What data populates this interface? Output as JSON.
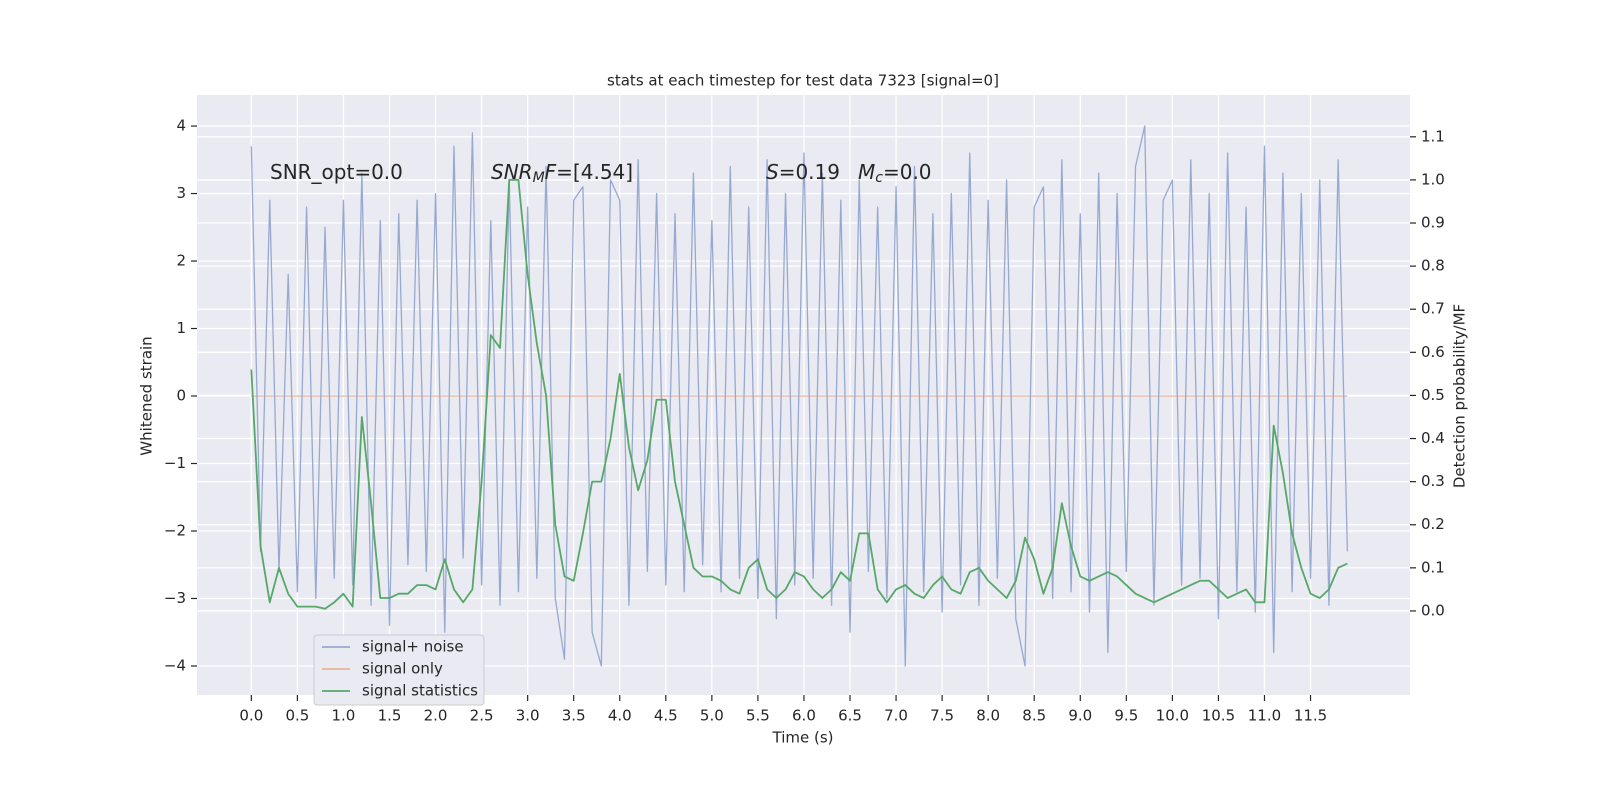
{
  "chart_data": {
    "type": "line",
    "title": "stats at each timestep for test data 7323 [signal=0]",
    "xlabel": "Time (s)",
    "ylabel": "Whitened strain",
    "y2label": "Detection probability/MF",
    "annotations": [
      {
        "parts": [
          {
            "text": "SNR_opt=0.0"
          }
        ]
      },
      {
        "parts": [
          {
            "text": "SNR",
            "italic": true
          },
          {
            "text": "M",
            "italic": true,
            "sub": true
          },
          {
            "text": "F",
            "italic": true
          },
          {
            "text": "=[4.54]"
          }
        ]
      },
      {
        "parts": [
          {
            "text": "S",
            "italic": true
          },
          {
            "text": "=0.19"
          }
        ]
      },
      {
        "parts": [
          {
            "text": "M",
            "italic": true
          },
          {
            "text": "c",
            "italic": true,
            "sub": true
          },
          {
            "text": "=0.0"
          }
        ]
      }
    ],
    "x": [
      0,
      0.1,
      0.2,
      0.3,
      0.4,
      0.5,
      0.6,
      0.7,
      0.8,
      0.9,
      1.0,
      1.1,
      1.2,
      1.3,
      1.4,
      1.5,
      1.6,
      1.7,
      1.8,
      1.9,
      2.0,
      2.1,
      2.2,
      2.3,
      2.4,
      2.5,
      2.6,
      2.7,
      2.8,
      2.9,
      3.0,
      3.1,
      3.2,
      3.3,
      3.4,
      3.5,
      3.6,
      3.7,
      3.8,
      3.9,
      4.0,
      4.1,
      4.2,
      4.3,
      4.4,
      4.5,
      4.6,
      4.7,
      4.8,
      4.9,
      5.0,
      5.1,
      5.2,
      5.3,
      5.4,
      5.5,
      5.6,
      5.7,
      5.8,
      5.9,
      6.0,
      6.1,
      6.2,
      6.3,
      6.4,
      6.5,
      6.6,
      6.7,
      6.8,
      6.9,
      7.0,
      7.1,
      7.2,
      7.3,
      7.4,
      7.5,
      7.6,
      7.7,
      7.8,
      7.9,
      8.0,
      8.1,
      8.2,
      8.3,
      8.4,
      8.5,
      8.6,
      8.7,
      8.8,
      8.9,
      9.0,
      9.1,
      9.2,
      9.3,
      9.4,
      9.5,
      9.6,
      9.7,
      9.8,
      9.9,
      10.0,
      10.1,
      10.2,
      10.3,
      10.4,
      10.5,
      10.6,
      10.7,
      10.8,
      10.9,
      11.0,
      11.1,
      11.2,
      11.3,
      11.4,
      11.5,
      11.6,
      11.7,
      11.8,
      11.9
    ],
    "series": [
      {
        "name": "signal+ noise",
        "color": "#97a9d1",
        "values": [
          3.7,
          -2.3,
          2.9,
          -2.6,
          1.8,
          -2.9,
          2.8,
          -3.0,
          2.5,
          -2.7,
          2.9,
          -2.8,
          3.3,
          -3.1,
          2.6,
          -3.4,
          2.7,
          -2.5,
          2.9,
          -2.6,
          3.0,
          -3.5,
          3.7,
          -2.4,
          3.9,
          -2.8,
          2.6,
          -3.1,
          3.2,
          -2.9,
          2.8,
          -2.7,
          3.4,
          -3.0,
          -3.9,
          2.9,
          3.1,
          -3.5,
          -4.0,
          3.2,
          2.9,
          -3.1,
          3.5,
          -2.6,
          3.0,
          -2.8,
          2.7,
          -2.9,
          3.3,
          -2.5,
          2.6,
          -2.9,
          3.4,
          -2.7,
          2.8,
          -3.0,
          3.5,
          -3.3,
          3.0,
          -2.8,
          3.6,
          -2.7,
          3.3,
          -3.1,
          2.9,
          -3.5,
          3.2,
          -2.6,
          2.8,
          -3.0,
          3.1,
          -4.0,
          3.4,
          -2.9,
          2.7,
          -3.2,
          3.0,
          -2.8,
          3.6,
          -3.1,
          2.9,
          -2.7,
          3.2,
          -3.3,
          -4.0,
          2.8,
          3.1,
          -3.0,
          3.5,
          -2.9,
          2.7,
          -3.2,
          3.3,
          -3.8,
          3.0,
          -2.6,
          3.4,
          4.0,
          -3.1,
          2.9,
          3.2,
          -2.8,
          3.5,
          -2.7,
          3.0,
          -3.3,
          3.6,
          -2.9,
          2.8,
          -3.2,
          3.7,
          -3.8,
          3.3,
          -2.9,
          3.0,
          -2.7,
          3.2,
          -3.1,
          3.5,
          -2.3
        ]
      },
      {
        "name": "signal only",
        "color": "#e8b49a",
        "values": [
          0,
          0,
          0,
          0,
          0,
          0,
          0,
          0,
          0,
          0,
          0,
          0,
          0,
          0,
          0,
          0,
          0,
          0,
          0,
          0,
          0,
          0,
          0,
          0,
          0,
          0,
          0,
          0,
          0,
          0,
          0,
          0,
          0,
          0,
          0,
          0,
          0,
          0,
          0,
          0,
          0,
          0,
          0,
          0,
          0,
          0,
          0,
          0,
          0,
          0,
          0,
          0,
          0,
          0,
          0,
          0,
          0,
          0,
          0,
          0,
          0,
          0,
          0,
          0,
          0,
          0,
          0,
          0,
          0,
          0,
          0,
          0,
          0,
          0,
          0,
          0,
          0,
          0,
          0,
          0,
          0,
          0,
          0,
          0,
          0,
          0,
          0,
          0,
          0,
          0,
          0,
          0,
          0,
          0,
          0,
          0,
          0,
          0,
          0,
          0,
          0,
          0,
          0,
          0,
          0,
          0,
          0,
          0,
          0,
          0,
          0,
          0,
          0,
          0,
          0,
          0,
          0,
          0,
          0,
          0
        ]
      },
      {
        "name": "signal statistics",
        "color": "#55a868",
        "axis": "y2",
        "values": [
          0.56,
          0.15,
          0.02,
          0.1,
          0.04,
          0.01,
          0.01,
          0.01,
          0.005,
          0.02,
          0.04,
          0.01,
          0.45,
          0.25,
          0.03,
          0.03,
          0.04,
          0.04,
          0.06,
          0.06,
          0.05,
          0.12,
          0.05,
          0.02,
          0.05,
          0.3,
          0.64,
          0.61,
          1.0,
          1.0,
          0.78,
          0.62,
          0.5,
          0.2,
          0.08,
          0.07,
          0.18,
          0.3,
          0.3,
          0.4,
          0.55,
          0.38,
          0.28,
          0.35,
          0.49,
          0.49,
          0.3,
          0.2,
          0.1,
          0.08,
          0.08,
          0.07,
          0.05,
          0.04,
          0.1,
          0.12,
          0.05,
          0.03,
          0.05,
          0.09,
          0.08,
          0.05,
          0.03,
          0.05,
          0.09,
          0.07,
          0.18,
          0.18,
          0.05,
          0.02,
          0.05,
          0.06,
          0.04,
          0.03,
          0.06,
          0.08,
          0.05,
          0.04,
          0.09,
          0.1,
          0.07,
          0.05,
          0.03,
          0.07,
          0.17,
          0.12,
          0.04,
          0.1,
          0.25,
          0.15,
          0.08,
          0.07,
          0.08,
          0.09,
          0.08,
          0.06,
          0.04,
          0.03,
          0.02,
          0.03,
          0.04,
          0.05,
          0.06,
          0.07,
          0.07,
          0.05,
          0.03,
          0.04,
          0.05,
          0.02,
          0.02,
          0.43,
          0.32,
          0.18,
          0.1,
          0.04,
          0.03,
          0.05,
          0.1,
          0.11
        ]
      }
    ],
    "xlim": [
      -0.59,
      12.58
    ],
    "xticks": [
      {
        "value": 0,
        "label": "0.0"
      },
      0.5,
      {
        "value": 1,
        "label": "1.0"
      },
      1.5,
      {
        "value": 2,
        "label": "2.0"
      },
      2.5,
      {
        "value": 3,
        "label": "3.0"
      },
      3.5,
      {
        "value": 4,
        "label": "4.0"
      },
      4.5,
      {
        "value": 5,
        "label": "5.0"
      },
      5.5,
      {
        "value": 6,
        "label": "6.0"
      },
      6.5,
      {
        "value": 7,
        "label": "7.0"
      },
      7.5,
      {
        "value": 8,
        "label": "8.0"
      },
      8.5,
      {
        "value": 9,
        "label": "9.0"
      },
      9.5,
      {
        "value": 10,
        "label": "10.0"
      },
      10.5,
      {
        "value": 11,
        "label": "11.0"
      },
      11.5
    ],
    "ylim": [
      -4.43,
      4.46
    ],
    "yticks": [
      {
        "value": -4,
        "label": "−4"
      },
      {
        "value": -3,
        "label": "−3"
      },
      {
        "value": -2,
        "label": "−2"
      },
      {
        "value": -1,
        "label": "−1"
      },
      0,
      1,
      2,
      3,
      4
    ],
    "y2lim": [
      -0.195,
      1.197
    ],
    "y2ticks": [
      {
        "value": 0,
        "label": "0.0"
      },
      0.1,
      0.2,
      0.3,
      0.4,
      0.5,
      0.6,
      0.7,
      0.8,
      0.9,
      {
        "value": 1,
        "label": "1.0"
      },
      1.1
    ],
    "grid": true,
    "legend": "lower left"
  }
}
